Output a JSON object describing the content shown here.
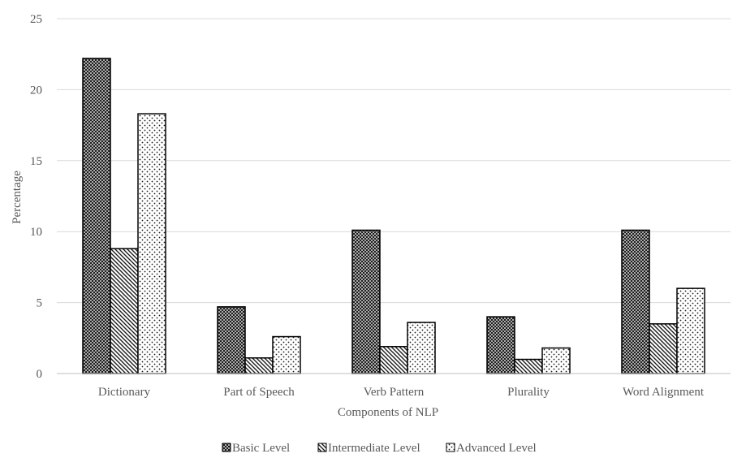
{
  "chart_data": {
    "type": "bar",
    "title": "",
    "xlabel": "Components of NLP",
    "ylabel": "Percentage",
    "ylim": [
      0,
      25
    ],
    "yticks": [
      0,
      5,
      10,
      15,
      20,
      25
    ],
    "grid": true,
    "legend_position": "bottom",
    "categories": [
      "Dictionary",
      "Part of Speech",
      "Verb Pattern",
      "Plurality",
      "Word Alignment"
    ],
    "series": [
      {
        "name": "Basic Level",
        "pattern": "crosshatch",
        "values": [
          22.2,
          4.7,
          10.1,
          4.0,
          10.1
        ]
      },
      {
        "name": "Intermediate Level",
        "pattern": "diagonal",
        "values": [
          8.8,
          1.1,
          1.9,
          1.0,
          3.5
        ]
      },
      {
        "name": "Advanced Level",
        "pattern": "dots",
        "values": [
          18.3,
          2.6,
          3.6,
          1.8,
          6.0
        ]
      }
    ]
  }
}
